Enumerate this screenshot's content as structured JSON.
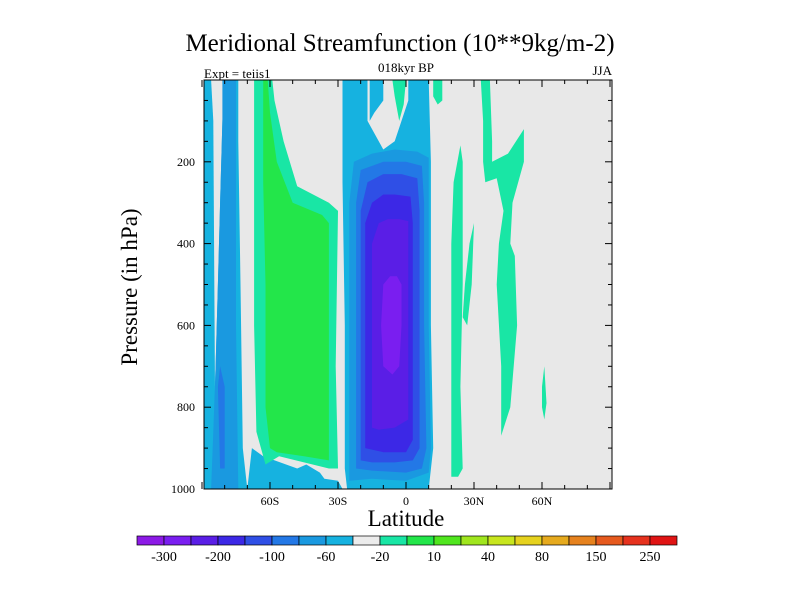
{
  "chart_data": {
    "type": "heatmap",
    "title": "Meridional Streamfunction (10**9kg/m-2)",
    "subtitle": "018kyr BP",
    "left_label": "Expt = teiis1",
    "right_label": "JJA",
    "xlabel": "Latitude",
    "ylabel": "Pressure (in hPa)",
    "xlim": [
      -90,
      90
    ],
    "ylim": [
      1000,
      0
    ],
    "x_ticks": [
      {
        "value": -60,
        "label": "60S"
      },
      {
        "value": -30,
        "label": "30S"
      },
      {
        "value": 0,
        "label": "0"
      },
      {
        "value": 30,
        "label": "30N"
      },
      {
        "value": 60,
        "label": "60N"
      }
    ],
    "y_ticks": [
      {
        "value": 200,
        "label": "200"
      },
      {
        "value": 400,
        "label": "400"
      },
      {
        "value": 600,
        "label": "600"
      },
      {
        "value": 800,
        "label": "800"
      },
      {
        "value": 1000,
        "label": "1000"
      }
    ],
    "background_color": "#e8e8e8",
    "colorbar": {
      "colors": [
        "#8c1ae6",
        "#7a1ef0",
        "#5a1ee6",
        "#3c28e6",
        "#2f4fe6",
        "#2378e6",
        "#1a99e0",
        "#16b2e0",
        "#ececec",
        "#19e6a5",
        "#23e64a",
        "#50e61e",
        "#a0e61e",
        "#c8e61e",
        "#e6d21e",
        "#e6aa1e",
        "#e6821e",
        "#e65a1e",
        "#e6321e",
        "#e01414"
      ],
      "labels": [
        "-300",
        "-200",
        "-100",
        "-60",
        "-20",
        "10",
        "40",
        "80",
        "150",
        "250"
      ]
    },
    "contours": [
      {
        "level": "-20",
        "color": "#16b2e0",
        "points": [
          [
            -89,
            0
          ],
          [
            -86,
            0
          ],
          [
            -85,
            100
          ],
          [
            -84,
            1000
          ],
          [
            -89,
            1000
          ]
        ]
      },
      {
        "level": "-20",
        "color": "#16b2e0",
        "points": [
          [
            -86,
            1000
          ],
          [
            -85,
            880
          ],
          [
            -84,
            700
          ],
          [
            -83,
            500
          ],
          [
            -82,
            300
          ],
          [
            -81,
            100
          ],
          [
            -80,
            0
          ],
          [
            -74,
            0
          ],
          [
            -74,
            150
          ],
          [
            -73,
            500
          ],
          [
            -72,
            900
          ],
          [
            -70,
            1000
          ]
        ]
      },
      {
        "level": "-60",
        "color": "#1a99e0",
        "points": [
          [
            -86,
            1000
          ],
          [
            -85,
            860
          ],
          [
            -84,
            700
          ],
          [
            -83,
            500
          ],
          [
            -82,
            300
          ],
          [
            -81,
            100
          ],
          [
            -81,
            0
          ],
          [
            -75,
            0
          ],
          [
            -75,
            600
          ],
          [
            -74,
            1000
          ]
        ]
      },
      {
        "level": "-100",
        "color": "#2378e6",
        "points": [
          [
            -82,
            950
          ],
          [
            -83,
            750
          ],
          [
            -82,
            700
          ],
          [
            -80,
            750
          ],
          [
            -80,
            950
          ]
        ]
      },
      {
        "level": "-20",
        "color": "#16b2e0",
        "points": [
          [
            -70,
            1000
          ],
          [
            -68,
            900
          ],
          [
            -63,
            920
          ],
          [
            -48,
            950
          ],
          [
            -44,
            940
          ],
          [
            -38,
            960
          ],
          [
            -36,
            975
          ],
          [
            -30,
            980
          ],
          [
            -28,
            1000
          ]
        ]
      },
      {
        "level": "10",
        "color": "#19e6a5",
        "points": [
          [
            -67,
            0
          ],
          [
            -59,
            0
          ],
          [
            -58,
            50
          ],
          [
            -54,
            150
          ],
          [
            -48,
            260
          ],
          [
            -34,
            300
          ],
          [
            -30,
            320
          ],
          [
            -31,
            700
          ],
          [
            -30,
            950
          ],
          [
            -34,
            950
          ],
          [
            -45,
            935
          ],
          [
            -56,
            920
          ],
          [
            -62,
            940
          ],
          [
            -66,
            860
          ],
          [
            -67,
            600
          ],
          [
            -67,
            200
          ]
        ]
      },
      {
        "level": "40",
        "color": "#23e64a",
        "points": [
          [
            -63,
            0
          ],
          [
            -61,
            0
          ],
          [
            -60,
            80
          ],
          [
            -57,
            200
          ],
          [
            -50,
            300
          ],
          [
            -37,
            330
          ],
          [
            -34,
            350
          ],
          [
            -34,
            700
          ],
          [
            -34,
            930
          ],
          [
            -45,
            920
          ],
          [
            -57,
            910
          ],
          [
            -60,
            900
          ],
          [
            -62,
            800
          ],
          [
            -62,
            500
          ],
          [
            -63,
            250
          ]
        ]
      },
      {
        "level": "-20",
        "color": "#16b2e0",
        "points": [
          [
            -28,
            0
          ],
          [
            -28,
            250
          ],
          [
            -27,
            600
          ],
          [
            -27,
            950
          ],
          [
            -26,
            1000
          ],
          [
            -8,
            1000
          ],
          [
            -4,
            1000
          ],
          [
            10,
            1000
          ],
          [
            12,
            900
          ],
          [
            11,
            600
          ],
          [
            11,
            300
          ],
          [
            11,
            200
          ],
          [
            10,
            0
          ],
          [
            1,
            0
          ],
          [
            1,
            50
          ],
          [
            -2,
            100
          ],
          [
            -5,
            150
          ],
          [
            -10,
            170
          ],
          [
            -17,
            100
          ],
          [
            -17,
            0
          ]
        ]
      },
      {
        "level": "-20",
        "color": "#16b2e0",
        "points": [
          [
            -10,
            0
          ],
          [
            -10,
            50
          ],
          [
            -14,
            80
          ],
          [
            -16,
            100
          ],
          [
            -16,
            0
          ]
        ]
      },
      {
        "level": "-60",
        "color": "#1a99e0",
        "points": [
          [
            -25,
            950
          ],
          [
            -25,
            600
          ],
          [
            -25,
            300
          ],
          [
            -23,
            200
          ],
          [
            -15,
            180
          ],
          [
            -5,
            170
          ],
          [
            5,
            175
          ],
          [
            10,
            190
          ],
          [
            10,
            300
          ],
          [
            10,
            600
          ],
          [
            11,
            900
          ],
          [
            10,
            960
          ],
          [
            0,
            980
          ],
          [
            -15,
            975
          ],
          [
            -25,
            980
          ]
        ]
      },
      {
        "level": "-100",
        "color": "#2378e6",
        "points": [
          [
            -22,
            950
          ],
          [
            -22,
            600
          ],
          [
            -22,
            300
          ],
          [
            -20,
            220
          ],
          [
            -10,
            200
          ],
          [
            0,
            200
          ],
          [
            7,
            210
          ],
          [
            8,
            300
          ],
          [
            8,
            600
          ],
          [
            9,
            900
          ],
          [
            7,
            950
          ],
          [
            0,
            960
          ],
          [
            -15,
            955
          ]
        ]
      },
      {
        "level": "-150",
        "color": "#2f4fe6",
        "points": [
          [
            -20,
            930
          ],
          [
            -20,
            600
          ],
          [
            -20,
            320
          ],
          [
            -17,
            250
          ],
          [
            -10,
            230
          ],
          [
            -2,
            230
          ],
          [
            5,
            240
          ],
          [
            6,
            320
          ],
          [
            6,
            600
          ],
          [
            6,
            900
          ],
          [
            3,
            930
          ],
          [
            -5,
            935
          ],
          [
            -15,
            935
          ]
        ]
      },
      {
        "level": "-200",
        "color": "#3c28e6",
        "points": [
          [
            -18,
            900
          ],
          [
            -18,
            600
          ],
          [
            -18,
            350
          ],
          [
            -15,
            300
          ],
          [
            -10,
            280
          ],
          [
            -5,
            280
          ],
          [
            2,
            285
          ],
          [
            3,
            350
          ],
          [
            3,
            600
          ],
          [
            3,
            880
          ],
          [
            0,
            910
          ],
          [
            -10,
            910
          ]
        ]
      },
      {
        "level": "-250",
        "color": "#5a1ee6",
        "points": [
          [
            -15,
            850
          ],
          [
            -15,
            600
          ],
          [
            -15,
            400
          ],
          [
            -12,
            350
          ],
          [
            -8,
            340
          ],
          [
            -3,
            340
          ],
          [
            1,
            345
          ],
          [
            1,
            400
          ],
          [
            1,
            600
          ],
          [
            1,
            830
          ],
          [
            -5,
            850
          ],
          [
            -12,
            855
          ]
        ]
      },
      {
        "level": "-300",
        "color": "#7a1ef0",
        "points": [
          [
            -10,
            700
          ],
          [
            -11,
            600
          ],
          [
            -10,
            500
          ],
          [
            -7,
            480
          ],
          [
            -4,
            480
          ],
          [
            -2,
            500
          ],
          [
            -2,
            600
          ],
          [
            -3,
            700
          ],
          [
            -6,
            720
          ]
        ]
      },
      {
        "level": "10",
        "color": "#19e6a5",
        "points": [
          [
            -6,
            0
          ],
          [
            0,
            0
          ],
          [
            -1,
            60
          ],
          [
            -3,
            100
          ],
          [
            -5,
            40
          ]
        ]
      },
      {
        "level": "10",
        "color": "#19e6a5",
        "points": [
          [
            12,
            0
          ],
          [
            16,
            0
          ],
          [
            16,
            50
          ],
          [
            14,
            60
          ],
          [
            12,
            40
          ]
        ]
      },
      {
        "level": "10",
        "color": "#19e6a5",
        "points": [
          [
            20,
            950
          ],
          [
            20,
            700
          ],
          [
            20,
            400
          ],
          [
            21,
            250
          ],
          [
            24,
            160
          ],
          [
            25,
            200
          ],
          [
            25,
            500
          ],
          [
            24,
            750
          ],
          [
            25,
            950
          ],
          [
            23,
            970
          ],
          [
            20,
            970
          ]
        ]
      },
      {
        "level": "10",
        "color": "#19e6a5",
        "points": [
          [
            25,
            580
          ],
          [
            26,
            500
          ],
          [
            28,
            400
          ],
          [
            30,
            350
          ],
          [
            29,
            500
          ],
          [
            27,
            600
          ]
        ]
      },
      {
        "level": "10",
        "color": "#19e6a5",
        "points": [
          [
            33,
            0
          ],
          [
            37,
            0
          ],
          [
            38,
            150
          ],
          [
            38,
            200
          ],
          [
            45,
            180
          ],
          [
            52,
            120
          ],
          [
            52,
            200
          ],
          [
            47,
            300
          ],
          [
            46,
            400
          ],
          [
            48,
            430
          ],
          [
            49,
            600
          ],
          [
            46,
            800
          ],
          [
            42,
            870
          ],
          [
            42,
            700
          ],
          [
            40,
            500
          ],
          [
            41,
            400
          ],
          [
            43,
            320
          ],
          [
            40,
            240
          ],
          [
            35,
            250
          ],
          [
            34,
            200
          ],
          [
            34,
            100
          ]
        ]
      },
      {
        "level": "10",
        "color": "#19e6a5",
        "points": [
          [
            60,
            750
          ],
          [
            61,
            700
          ],
          [
            62,
            790
          ],
          [
            61,
            830
          ],
          [
            60,
            800
          ]
        ]
      }
    ]
  }
}
